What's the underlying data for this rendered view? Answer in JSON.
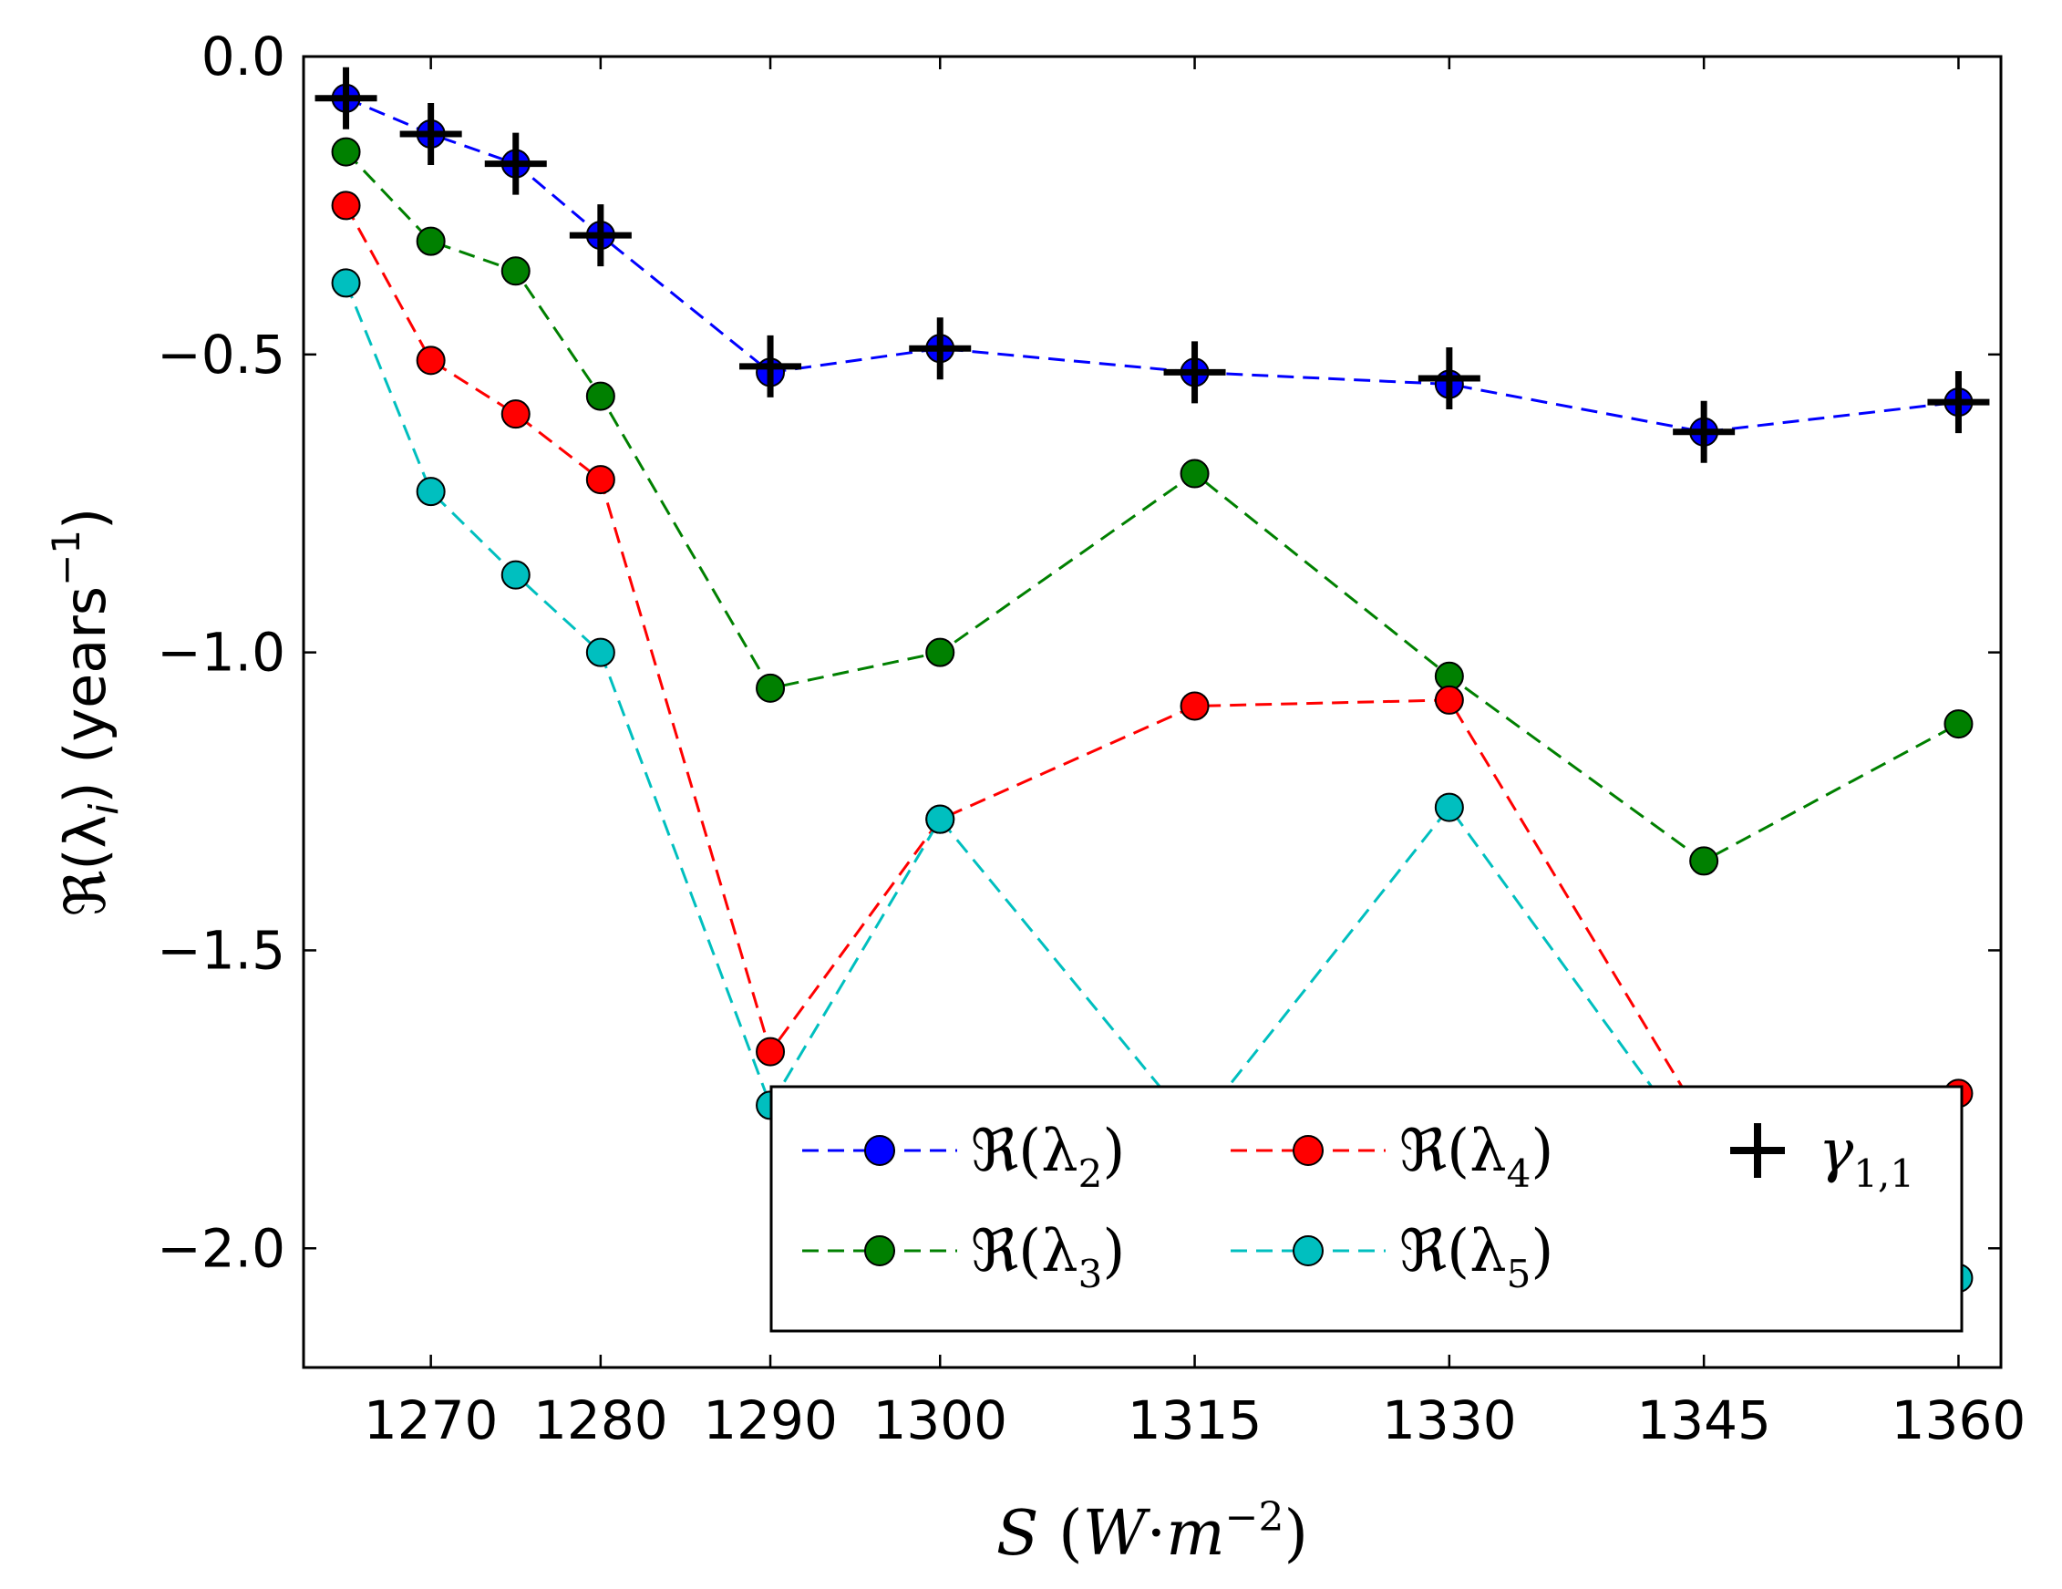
{
  "chart_data": {
    "type": "line",
    "xlabel": "S (W·m⁻²)",
    "ylabel": "ℜ(λᵢ) (years⁻¹)",
    "xticks": [
      1270,
      1280,
      1290,
      1300,
      1315,
      1330,
      1345,
      1360
    ],
    "yticks": [
      0.0,
      -0.5,
      -1.0,
      -1.5,
      -2.0
    ],
    "ytick_labels": [
      "0.0",
      "−0.5",
      "−1.0",
      "−1.5",
      "−2.0"
    ],
    "xlim": [
      1262.5,
      1362.5
    ],
    "ylim": [
      -2.2,
      0.0
    ],
    "grid": false,
    "legend_position": "lower-right",
    "x": [
      1265,
      1270,
      1275,
      1280,
      1290,
      1300,
      1315,
      1330,
      1345,
      1360
    ],
    "series": [
      {
        "name": "ℜ(λ2)",
        "label_main": "ℜ(λ",
        "label_sub": "2",
        "color": "#0000ff",
        "style": "dashed-marker",
        "values": [
          -0.07,
          -0.13,
          -0.18,
          -0.3,
          -0.53,
          -0.49,
          -0.53,
          -0.55,
          -0.63,
          -0.58
        ]
      },
      {
        "name": "ℜ(λ3)",
        "label_main": "ℜ(λ",
        "label_sub": "3",
        "color": "#008000",
        "style": "dashed-marker",
        "values": [
          -0.16,
          -0.31,
          -0.36,
          -0.57,
          -1.06,
          -1.0,
          -0.7,
          -1.04,
          -1.35,
          -1.12
        ]
      },
      {
        "name": "ℜ(λ4)",
        "label_main": "ℜ(λ",
        "label_sub": "4",
        "color": "#ff0000",
        "style": "dashed-marker",
        "values": [
          -0.25,
          -0.51,
          -0.6,
          -0.71,
          -1.67,
          -1.28,
          -1.09,
          -1.08,
          -1.79,
          -1.74
        ]
      },
      {
        "name": "ℜ(λ5)",
        "label_main": "ℜ(λ",
        "label_sub": "5",
        "color": "#00bfbf",
        "style": "dashed-marker",
        "values": [
          -0.38,
          -0.73,
          -0.87,
          -1.0,
          -1.76,
          -1.28,
          -1.8,
          -1.26,
          -1.85,
          -2.05
        ]
      },
      {
        "name": "γ1,1",
        "label_main": "γ",
        "label_sub": "1,1",
        "color": "#000000",
        "style": "plus",
        "values": [
          -0.07,
          -0.13,
          -0.18,
          -0.3,
          -0.52,
          -0.49,
          -0.53,
          -0.54,
          -0.63,
          -0.58
        ]
      }
    ]
  }
}
